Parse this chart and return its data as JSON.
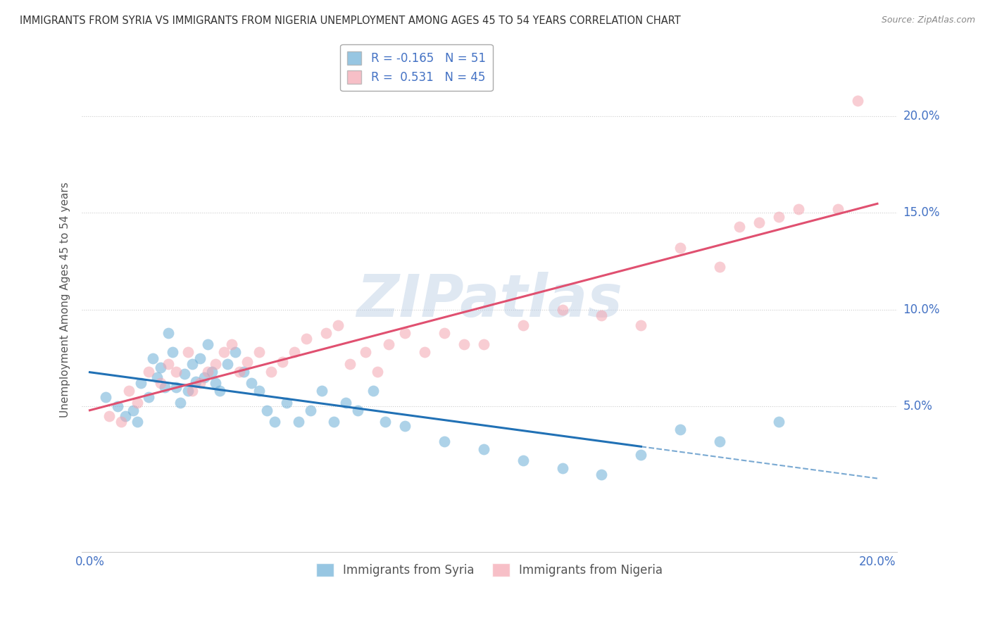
{
  "title": "IMMIGRANTS FROM SYRIA VS IMMIGRANTS FROM NIGERIA UNEMPLOYMENT AMONG AGES 45 TO 54 YEARS CORRELATION CHART",
  "source": "Source: ZipAtlas.com",
  "ylabel": "Unemployment Among Ages 45 to 54 years",
  "xlim": [
    -0.002,
    0.205
  ],
  "ylim": [
    -0.025,
    0.235
  ],
  "yticks": [
    0.05,
    0.1,
    0.15,
    0.2
  ],
  "ytick_labels": [
    "5.0%",
    "10.0%",
    "15.0%",
    "20.0%"
  ],
  "xticks": [
    0.0,
    0.05,
    0.1,
    0.15,
    0.2
  ],
  "xtick_labels": [
    "0.0%",
    "",
    "",
    "",
    "20.0%"
  ],
  "syria_color": "#6baed6",
  "nigeria_color": "#f4a4b0",
  "syria_line_color": "#2171b5",
  "nigeria_line_color": "#e05070",
  "syria_R": -0.165,
  "syria_N": 51,
  "nigeria_R": 0.531,
  "nigeria_N": 45,
  "watermark": "ZIPatlas",
  "grid_color": "#cccccc",
  "title_color": "#333333",
  "axis_label_color": "#4472c4",
  "syria_scatter_x": [
    0.004,
    0.007,
    0.009,
    0.011,
    0.012,
    0.013,
    0.015,
    0.016,
    0.017,
    0.018,
    0.019,
    0.02,
    0.021,
    0.022,
    0.023,
    0.024,
    0.025,
    0.026,
    0.027,
    0.028,
    0.029,
    0.03,
    0.031,
    0.032,
    0.033,
    0.035,
    0.037,
    0.039,
    0.041,
    0.043,
    0.045,
    0.047,
    0.05,
    0.053,
    0.056,
    0.059,
    0.062,
    0.065,
    0.068,
    0.072,
    0.075,
    0.08,
    0.09,
    0.1,
    0.11,
    0.12,
    0.13,
    0.14,
    0.15,
    0.16,
    0.175
  ],
  "syria_scatter_y": [
    0.055,
    0.05,
    0.045,
    0.048,
    0.042,
    0.062,
    0.055,
    0.075,
    0.065,
    0.07,
    0.06,
    0.088,
    0.078,
    0.06,
    0.052,
    0.067,
    0.058,
    0.072,
    0.063,
    0.075,
    0.065,
    0.082,
    0.068,
    0.062,
    0.058,
    0.072,
    0.078,
    0.068,
    0.062,
    0.058,
    0.048,
    0.042,
    0.052,
    0.042,
    0.048,
    0.058,
    0.042,
    0.052,
    0.048,
    0.058,
    0.042,
    0.04,
    0.032,
    0.028,
    0.022,
    0.018,
    0.015,
    0.025,
    0.038,
    0.032,
    0.042
  ],
  "nigeria_scatter_x": [
    0.005,
    0.008,
    0.01,
    0.012,
    0.015,
    0.018,
    0.02,
    0.022,
    0.025,
    0.026,
    0.028,
    0.03,
    0.032,
    0.034,
    0.036,
    0.038,
    0.04,
    0.043,
    0.046,
    0.049,
    0.052,
    0.055,
    0.06,
    0.063,
    0.066,
    0.07,
    0.073,
    0.076,
    0.08,
    0.085,
    0.09,
    0.095,
    0.1,
    0.11,
    0.12,
    0.13,
    0.14,
    0.15,
    0.16,
    0.165,
    0.17,
    0.175,
    0.18,
    0.19,
    0.195
  ],
  "nigeria_scatter_y": [
    0.045,
    0.042,
    0.058,
    0.052,
    0.068,
    0.062,
    0.072,
    0.068,
    0.078,
    0.058,
    0.062,
    0.068,
    0.072,
    0.078,
    0.082,
    0.068,
    0.073,
    0.078,
    0.068,
    0.073,
    0.078,
    0.085,
    0.088,
    0.092,
    0.072,
    0.078,
    0.068,
    0.082,
    0.088,
    0.078,
    0.088,
    0.082,
    0.082,
    0.092,
    0.1,
    0.097,
    0.092,
    0.132,
    0.122,
    0.143,
    0.145,
    0.148,
    0.152,
    0.152,
    0.208
  ]
}
